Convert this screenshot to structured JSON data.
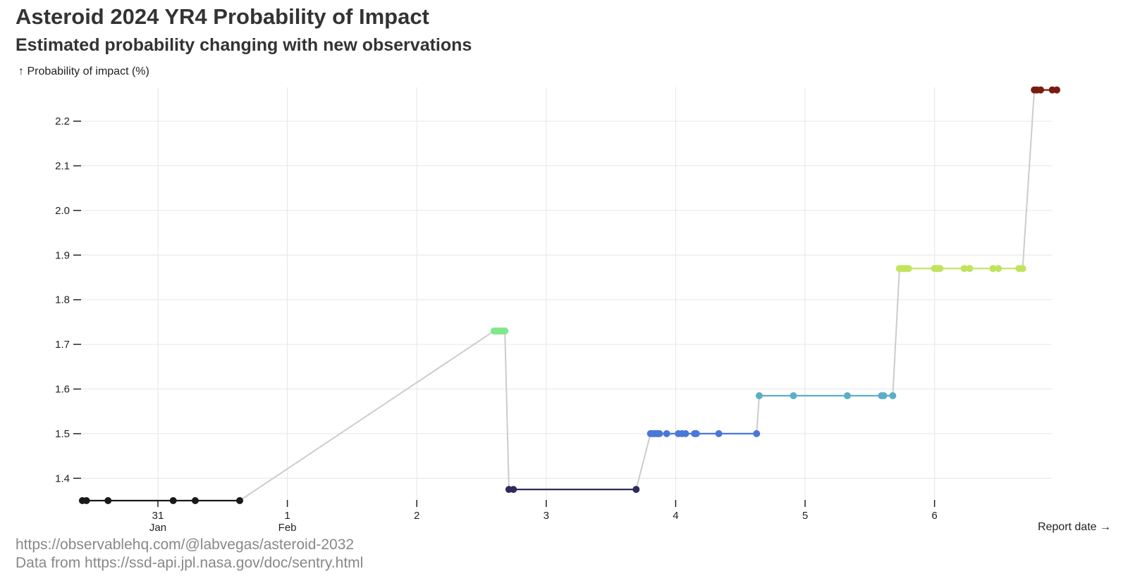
{
  "title": "Asteroid 2024 YR4 Probability of Impact",
  "subtitle": "Estimated probability changing with new observations",
  "footer": {
    "line1": "https://observablehq.com/@labvegas/asteroid-2032",
    "line2": "Data from https://ssd-api.jpl.nasa.gov/doc/sentry.html"
  },
  "colors": {
    "connector": "#cccccc",
    "grid": "#e6e6e6"
  },
  "chart_data": {
    "type": "line",
    "ylabel": "↑ Probability of impact (%)",
    "xlabel": "Report date →",
    "ylim": [
      1.35,
      2.27
    ],
    "xlim": [
      "2025-01-30T09:58",
      "2025-02-06T22:40"
    ],
    "y_ticks": [
      "1.4",
      "1.5",
      "1.6",
      "1.7",
      "1.8",
      "1.9",
      "2.0",
      "2.1",
      "2.2"
    ],
    "x_ticks": [
      {
        "date": "2025-01-31",
        "label": "31",
        "sublabel": "Jan"
      },
      {
        "date": "2025-02-01",
        "label": "1",
        "sublabel": "Feb"
      },
      {
        "date": "2025-02-02",
        "label": "2",
        "sublabel": ""
      },
      {
        "date": "2025-02-03",
        "label": "3",
        "sublabel": ""
      },
      {
        "date": "2025-02-04",
        "label": "4",
        "sublabel": ""
      },
      {
        "date": "2025-02-05",
        "label": "5",
        "sublabel": ""
      },
      {
        "date": "2025-02-06",
        "label": "6",
        "sublabel": ""
      }
    ],
    "grid": true,
    "series": [
      {
        "color": "#1a1a1a",
        "y": 1.35,
        "x": [
          "2025-01-30T10:00",
          "2025-01-30T10:45",
          "2025-01-30T14:45",
          "2025-01-31T02:50",
          "2025-01-31T06:55",
          "2025-01-31T15:10"
        ]
      },
      {
        "color": "#7ee88a",
        "y": 1.73,
        "x": [
          "2025-02-02T14:20",
          "2025-02-02T14:45",
          "2025-02-02T15:10",
          "2025-02-02T15:35",
          "2025-02-02T15:55",
          "2025-02-02T16:20"
        ]
      },
      {
        "color": "#2e2a5c",
        "y": 1.375,
        "x": [
          "2025-02-02T17:05",
          "2025-02-02T17:55",
          "2025-02-03T16:40"
        ]
      },
      {
        "color": "#4a78d8",
        "y": 1.5,
        "x": [
          "2025-02-03T19:20",
          "2025-02-03T19:40",
          "2025-02-03T20:00",
          "2025-02-03T20:20",
          "2025-02-03T20:40",
          "2025-02-03T21:00",
          "2025-02-03T22:20",
          "2025-02-04T00:30",
          "2025-02-04T01:10",
          "2025-02-04T01:50",
          "2025-02-04T03:30",
          "2025-02-04T03:50",
          "2025-02-04T08:00",
          "2025-02-04T15:00"
        ]
      },
      {
        "color": "#5aafc6",
        "y": 1.585,
        "x": [
          "2025-02-04T15:30",
          "2025-02-04T21:50",
          "2025-02-05T07:50",
          "2025-02-05T14:10",
          "2025-02-05T14:35",
          "2025-02-05T16:15"
        ]
      },
      {
        "color": "#c2e35c",
        "y": 1.87,
        "x": [
          "2025-02-05T17:30",
          "2025-02-05T17:50",
          "2025-02-05T18:10",
          "2025-02-05T18:30",
          "2025-02-05T18:50",
          "2025-02-05T19:10",
          "2025-02-06T00:00",
          "2025-02-06T00:20",
          "2025-02-06T00:40",
          "2025-02-06T01:00",
          "2025-02-06T05:30",
          "2025-02-06T06:30",
          "2025-02-06T10:50",
          "2025-02-06T11:50",
          "2025-02-06T15:40",
          "2025-02-06T16:20"
        ]
      },
      {
        "color": "#7a1b10",
        "y": 2.27,
        "x": [
          "2025-02-06T18:30",
          "2025-02-06T19:00",
          "2025-02-06T19:40",
          "2025-02-06T21:50",
          "2025-02-06T22:40"
        ]
      }
    ]
  }
}
